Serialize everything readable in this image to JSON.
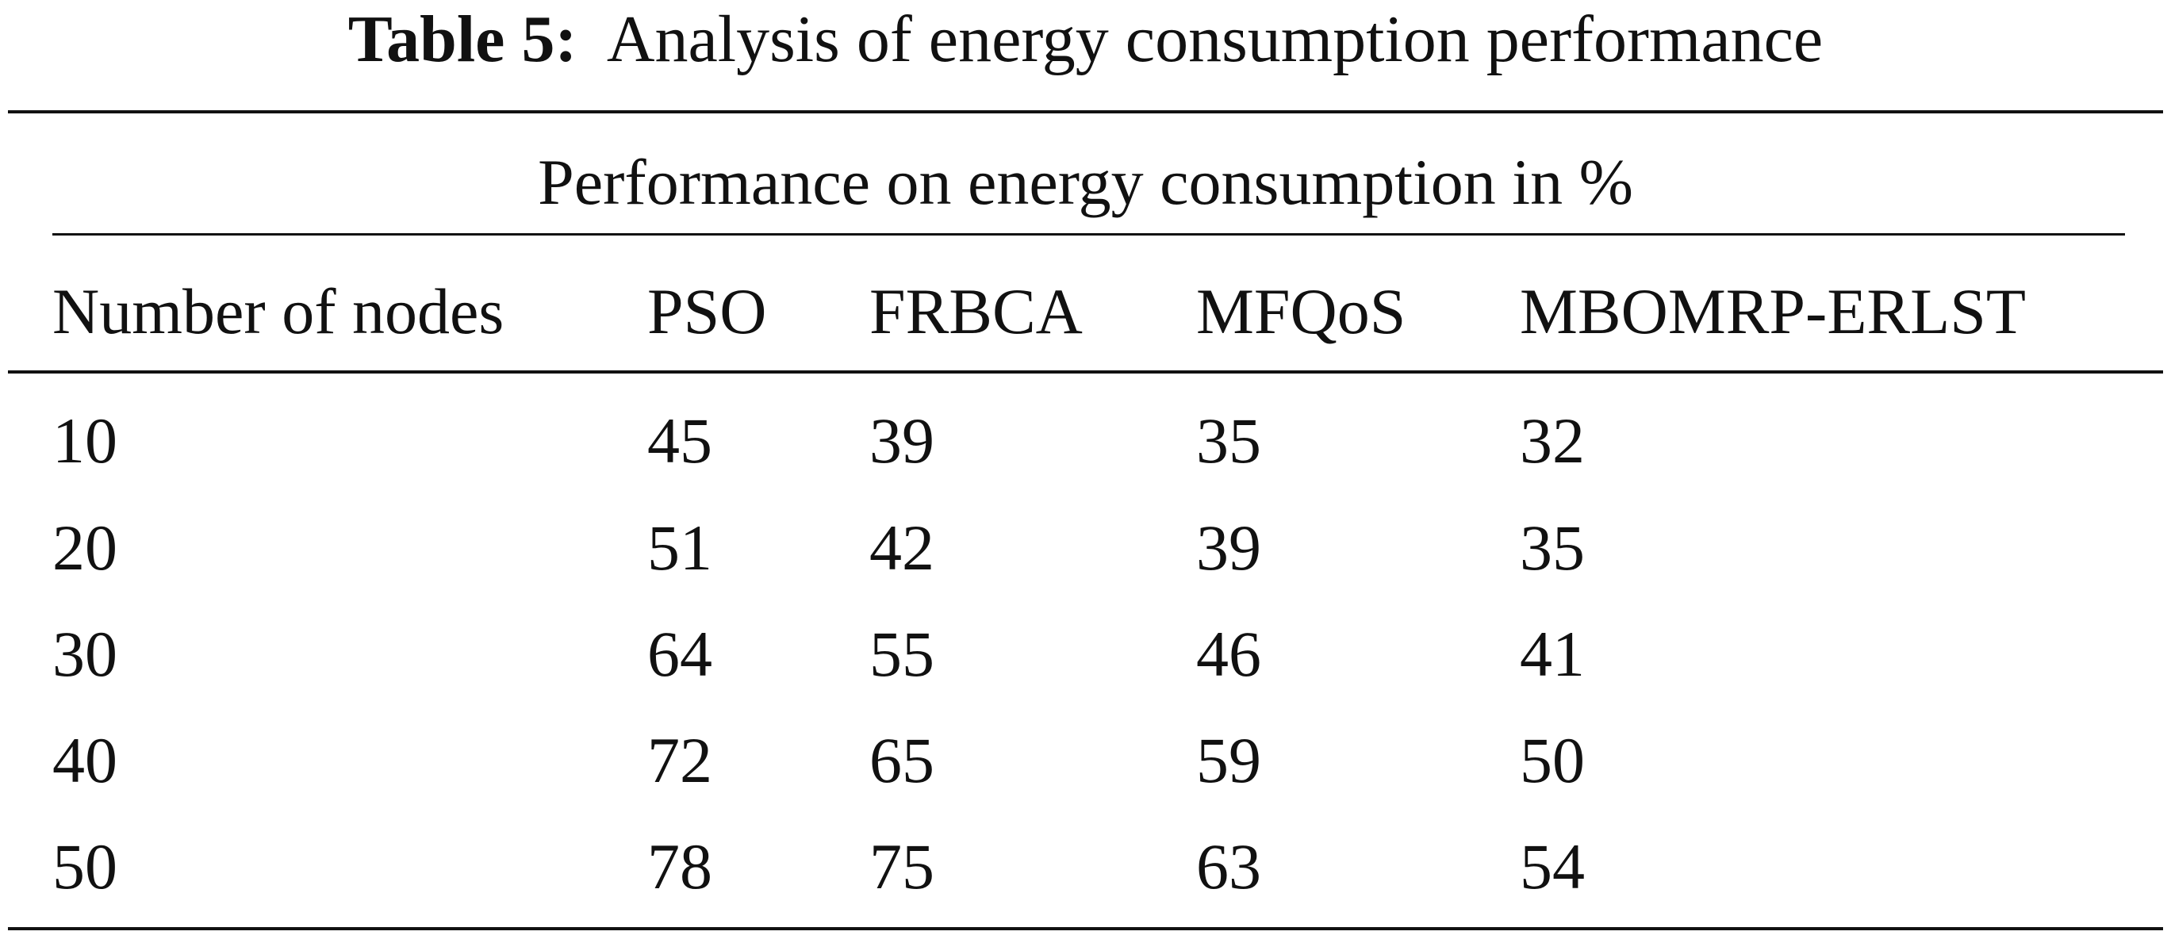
{
  "caption": {
    "label": "Table 5:",
    "title": "Analysis of energy consumption performance"
  },
  "table": {
    "group_header": "Performance on energy consumption in %",
    "columns": [
      "Number of nodes",
      "PSO",
      "FRBCA",
      "MFQoS",
      "MBOMRP-ERLST"
    ],
    "rows": [
      [
        "10",
        "45",
        "39",
        "35",
        "32"
      ],
      [
        "20",
        "51",
        "42",
        "39",
        "35"
      ],
      [
        "30",
        "64",
        "55",
        "46",
        "41"
      ],
      [
        "40",
        "72",
        "65",
        "59",
        "50"
      ],
      [
        "50",
        "78",
        "75",
        "63",
        "54"
      ]
    ]
  }
}
